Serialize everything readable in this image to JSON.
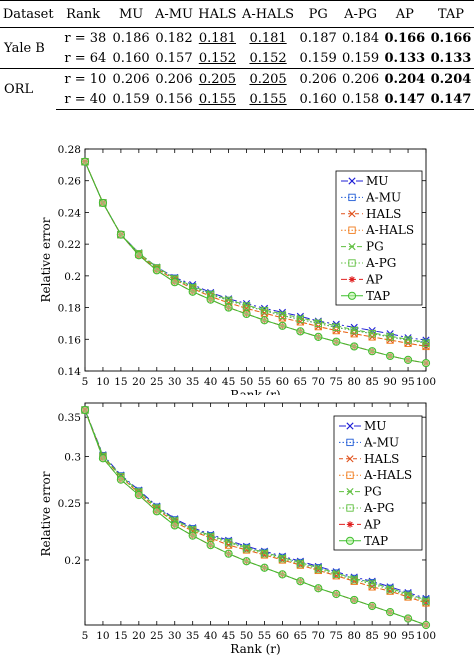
{
  "table": {
    "headers": [
      "Dataset",
      "Rank",
      "MU",
      "A-MU",
      "HALS",
      "A-HALS",
      "PG",
      "A-PG",
      "AP",
      "TAP"
    ],
    "groups": [
      {
        "dataset": "Yale B",
        "rows": [
          {
            "rank": "r = 38",
            "values": [
              "0.186",
              "0.182",
              "0.181",
              "0.181",
              "0.187",
              "0.184",
              "0.166",
              "0.166"
            ]
          },
          {
            "rank": "r = 64",
            "values": [
              "0.160",
              "0.157",
              "0.152",
              "0.152",
              "0.159",
              "0.159",
              "0.133",
              "0.133"
            ]
          }
        ]
      },
      {
        "dataset": "ORL",
        "rows": [
          {
            "rank": "r = 10",
            "values": [
              "0.206",
              "0.206",
              "0.205",
              "0.205",
              "0.206",
              "0.206",
              "0.204",
              "0.204"
            ]
          },
          {
            "rank": "r = 40",
            "values": [
              "0.159",
              "0.156",
              "0.155",
              "0.155",
              "0.160",
              "0.158",
              "0.147",
              "0.147"
            ]
          }
        ]
      }
    ]
  },
  "chart_data": [
    {
      "type": "line",
      "xlabel": "Rank (r)",
      "ylabel": "Relative error",
      "xlim": [
        5,
        100
      ],
      "ylim": [
        0.14,
        0.28
      ],
      "yscale": "linear",
      "xticks": [
        5,
        10,
        15,
        20,
        25,
        30,
        35,
        40,
        45,
        50,
        55,
        60,
        65,
        70,
        75,
        80,
        85,
        90,
        95,
        100
      ],
      "yticks": [
        0.14,
        0.16,
        0.18,
        0.2,
        0.22,
        0.24,
        0.26,
        0.28
      ],
      "ytick_labels": [
        "0.14",
        "0.16",
        "0.18",
        "0.2",
        "0.22",
        "0.24",
        "0.26",
        "0.28"
      ],
      "legend_position": "top-right",
      "grid": false,
      "x": [
        5,
        10,
        15,
        20,
        25,
        30,
        35,
        40,
        45,
        50,
        55,
        60,
        65,
        70,
        75,
        80,
        85,
        90,
        95,
        100
      ],
      "series": [
        {
          "name": "MU",
          "color": "#1f1fd6",
          "marker": "x",
          "dash": "7,3,2,3",
          "values": [
            0.272,
            0.246,
            0.226,
            0.2145,
            0.2055,
            0.199,
            0.1945,
            0.1895,
            0.1855,
            0.1825,
            0.1795,
            0.177,
            0.1745,
            0.1715,
            0.1695,
            0.1675,
            0.1655,
            0.1635,
            0.161,
            0.1595
          ]
        },
        {
          "name": "A-MU",
          "color": "#1f5bd6",
          "marker": "square",
          "dash": "1.5,2",
          "values": [
            0.272,
            0.246,
            0.226,
            0.214,
            0.205,
            0.1985,
            0.193,
            0.1885,
            0.1845,
            0.181,
            0.178,
            0.175,
            0.1725,
            0.17,
            0.1675,
            0.1655,
            0.1635,
            0.1615,
            0.1595,
            0.158
          ]
        },
        {
          "name": "HALS",
          "color": "#e0501a",
          "marker": "x",
          "dash": "4,3",
          "values": [
            0.272,
            0.246,
            0.226,
            0.2135,
            0.2045,
            0.1975,
            0.192,
            0.187,
            0.183,
            0.1795,
            0.1765,
            0.1735,
            0.171,
            0.168,
            0.1655,
            0.1635,
            0.1615,
            0.1595,
            0.1575,
            0.1555
          ]
        },
        {
          "name": "A-HALS",
          "color": "#f07a1a",
          "marker": "square",
          "dash": "1.5,2",
          "values": [
            0.272,
            0.246,
            0.226,
            0.2135,
            0.2045,
            0.1975,
            0.192,
            0.187,
            0.183,
            0.1795,
            0.1765,
            0.1735,
            0.171,
            0.168,
            0.1655,
            0.1635,
            0.1615,
            0.1595,
            0.1575,
            0.1555
          ]
        },
        {
          "name": "PG",
          "color": "#5fbf3f",
          "marker": "x",
          "dash": "5,3",
          "values": [
            0.272,
            0.246,
            0.226,
            0.2145,
            0.2055,
            0.1985,
            0.1935,
            0.189,
            0.185,
            0.1815,
            0.1785,
            0.176,
            0.1735,
            0.171,
            0.1685,
            0.166,
            0.164,
            0.162,
            0.16,
            0.158
          ]
        },
        {
          "name": "A-PG",
          "color": "#5fbf3f",
          "marker": "square",
          "dash": "1.5,2",
          "values": [
            0.272,
            0.246,
            0.226,
            0.214,
            0.205,
            0.198,
            0.1925,
            0.188,
            0.1845,
            0.181,
            0.178,
            0.175,
            0.1725,
            0.17,
            0.1675,
            0.1655,
            0.1635,
            0.1615,
            0.1595,
            0.1575
          ]
        },
        {
          "name": "AP",
          "color": "#e02020",
          "marker": "asterisk",
          "dash": "6,3",
          "values": [
            0.272,
            0.246,
            0.226,
            0.213,
            0.2035,
            0.196,
            0.19,
            0.185,
            0.18,
            0.176,
            0.172,
            0.1685,
            0.165,
            0.1615,
            0.1585,
            0.1555,
            0.1525,
            0.1495,
            0.147,
            0.145
          ]
        },
        {
          "name": "TAP",
          "color": "#3fbf2f",
          "marker": "circle",
          "dash": "",
          "values": [
            0.272,
            0.246,
            0.226,
            0.213,
            0.2035,
            0.196,
            0.19,
            0.185,
            0.18,
            0.176,
            0.172,
            0.1685,
            0.165,
            0.1615,
            0.1585,
            0.1555,
            0.1525,
            0.1495,
            0.147,
            0.145
          ]
        }
      ]
    },
    {
      "type": "line",
      "xlabel": "Rank (r)",
      "ylabel": "Relative error",
      "xlim": [
        5,
        100
      ],
      "ylim": [
        0.155,
        0.37
      ],
      "yscale": "log",
      "xticks": [
        5,
        10,
        15,
        20,
        25,
        30,
        35,
        40,
        45,
        50,
        55,
        60,
        65,
        70,
        75,
        80,
        85,
        90,
        95,
        100
      ],
      "yticks": [
        0.2,
        0.25,
        0.3,
        0.35
      ],
      "ytick_labels": [
        "0.2",
        "0.25",
        "0.3",
        "0.35"
      ],
      "legend_position": "top-right",
      "grid": false,
      "x": [
        5,
        10,
        15,
        20,
        25,
        30,
        35,
        40,
        45,
        50,
        55,
        60,
        65,
        70,
        75,
        80,
        85,
        90,
        95,
        100
      ],
      "series": [
        {
          "name": "MU",
          "color": "#1f1fd6",
          "marker": "x",
          "dash": "7,3,2,3",
          "values": [
            0.36,
            0.302,
            0.279,
            0.263,
            0.247,
            0.235,
            0.227,
            0.221,
            0.216,
            0.211,
            0.207,
            0.203,
            0.199,
            0.195,
            0.191,
            0.187,
            0.184,
            0.18,
            0.176,
            0.172
          ]
        },
        {
          "name": "A-MU",
          "color": "#1f5bd6",
          "marker": "square",
          "dash": "1.5,2",
          "values": [
            0.36,
            0.301,
            0.278,
            0.262,
            0.246,
            0.234,
            0.226,
            0.22,
            0.215,
            0.21,
            0.206,
            0.202,
            0.198,
            0.194,
            0.19,
            0.186,
            0.183,
            0.179,
            0.175,
            0.171
          ]
        },
        {
          "name": "HALS",
          "color": "#e0501a",
          "marker": "x",
          "dash": "4,3",
          "values": [
            0.36,
            0.3,
            0.277,
            0.26,
            0.244,
            0.232,
            0.224,
            0.218,
            0.212,
            0.208,
            0.204,
            0.2,
            0.196,
            0.192,
            0.188,
            0.184,
            0.18,
            0.177,
            0.173,
            0.169
          ]
        },
        {
          "name": "A-HALS",
          "color": "#f07a1a",
          "marker": "square",
          "dash": "1.5,2",
          "values": [
            0.36,
            0.3,
            0.277,
            0.26,
            0.244,
            0.232,
            0.224,
            0.218,
            0.212,
            0.208,
            0.204,
            0.2,
            0.196,
            0.192,
            0.188,
            0.184,
            0.18,
            0.177,
            0.173,
            0.169
          ]
        },
        {
          "name": "PG",
          "color": "#5fbf3f",
          "marker": "x",
          "dash": "5,3",
          "values": [
            0.36,
            0.301,
            0.278,
            0.262,
            0.246,
            0.234,
            0.226,
            0.22,
            0.215,
            0.21,
            0.206,
            0.202,
            0.198,
            0.194,
            0.19,
            0.186,
            0.183,
            0.179,
            0.175,
            0.171
          ]
        },
        {
          "name": "A-PG",
          "color": "#5fbf3f",
          "marker": "square",
          "dash": "1.5,2",
          "values": [
            0.36,
            0.3,
            0.277,
            0.261,
            0.245,
            0.233,
            0.225,
            0.219,
            0.214,
            0.209,
            0.205,
            0.201,
            0.197,
            0.193,
            0.189,
            0.185,
            0.182,
            0.178,
            0.174,
            0.17
          ]
        },
        {
          "name": "AP",
          "color": "#e02020",
          "marker": "asterisk",
          "dash": "6,3",
          "values": [
            0.36,
            0.298,
            0.274,
            0.258,
            0.242,
            0.229,
            0.22,
            0.212,
            0.205,
            0.199,
            0.194,
            0.189,
            0.184,
            0.179,
            0.175,
            0.171,
            0.167,
            0.163,
            0.159,
            0.155
          ]
        },
        {
          "name": "TAP",
          "color": "#3fbf2f",
          "marker": "circle",
          "dash": "",
          "values": [
            0.36,
            0.298,
            0.274,
            0.258,
            0.242,
            0.229,
            0.22,
            0.212,
            0.205,
            0.199,
            0.194,
            0.189,
            0.184,
            0.179,
            0.175,
            0.171,
            0.167,
            0.163,
            0.159,
            0.155
          ]
        }
      ]
    }
  ]
}
